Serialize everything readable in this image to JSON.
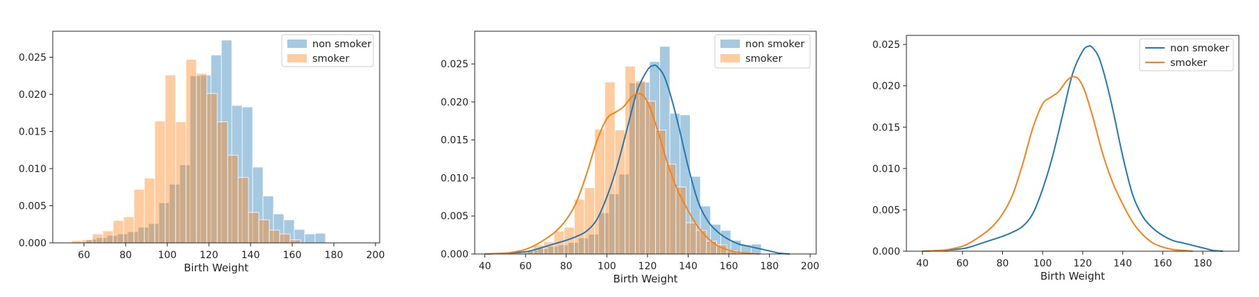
{
  "colors": {
    "non_smoker": "#1f77b4",
    "smoker": "#ff7f0e",
    "spine": "#222222",
    "legend_border": "#cccccc"
  },
  "chart_data": [
    {
      "type": "histogram",
      "title": "",
      "xlabel": "Birth Weight",
      "ylabel": "",
      "xlim": [
        45,
        202
      ],
      "ylim": [
        0,
        0.0285
      ],
      "xticks": [
        "60",
        "80",
        "100",
        "120",
        "140",
        "160",
        "180",
        "200"
      ],
      "xtick_values": [
        60,
        80,
        100,
        120,
        140,
        160,
        180,
        200
      ],
      "yticks": [
        "0.000",
        "0.005",
        "0.010",
        "0.015",
        "0.020",
        "0.025"
      ],
      "ytick_values": [
        0,
        0.005,
        0.01,
        0.015,
        0.02,
        0.025
      ],
      "grid": false,
      "legend": {
        "position": "top-right",
        "style": "patch",
        "entries": [
          "non smoker",
          "smoker"
        ]
      },
      "series": [
        {
          "name": "non smoker",
          "color": "#1f77b4",
          "alpha": 0.4,
          "bin_edges": [
            56,
            61,
            66,
            71,
            76,
            81,
            86,
            91,
            96,
            101,
            106,
            111,
            116,
            121,
            126,
            131,
            136,
            141,
            146,
            151,
            156,
            161,
            166,
            171,
            176
          ],
          "values": [
            0.0001,
            0.0005,
            0.0007,
            0.001,
            0.0012,
            0.0015,
            0.0021,
            0.0026,
            0.0054,
            0.0079,
            0.0105,
            0.0225,
            0.0226,
            0.0253,
            0.0273,
            0.0185,
            0.0183,
            0.0102,
            0.0063,
            0.0039,
            0.0031,
            0.0018,
            0.0012,
            0.0013
          ]
        },
        {
          "name": "smoker",
          "color": "#ff7f0e",
          "alpha": 0.4,
          "bin_edges": [
            54,
            59,
            64,
            69,
            74,
            79,
            84,
            89,
            94,
            99,
            104,
            109,
            114,
            119,
            124,
            129,
            134,
            139,
            144,
            149,
            154,
            159,
            164
          ],
          "values": [
            0.0003,
            0.0004,
            0.0012,
            0.0016,
            0.003,
            0.0035,
            0.0072,
            0.0087,
            0.0164,
            0.0226,
            0.0163,
            0.0247,
            0.0228,
            0.0201,
            0.0163,
            0.0118,
            0.0088,
            0.0041,
            0.0031,
            0.0017,
            0.0012,
            0.0004
          ]
        }
      ]
    },
    {
      "type": "histogram",
      "title": "",
      "xlabel": "Birth Weight",
      "ylabel": "",
      "xlim": [
        35,
        203
      ],
      "ylim": [
        0,
        0.0293
      ],
      "xticks": [
        "40",
        "60",
        "80",
        "100",
        "120",
        "140",
        "160",
        "180",
        "200"
      ],
      "xtick_values": [
        40,
        60,
        80,
        100,
        120,
        140,
        160,
        180,
        200
      ],
      "yticks": [
        "0.000",
        "0.005",
        "0.010",
        "0.015",
        "0.020",
        "0.025"
      ],
      "ytick_values": [
        0,
        0.005,
        0.01,
        0.015,
        0.02,
        0.025
      ],
      "grid": false,
      "legend": {
        "position": "top-right",
        "style": "patch",
        "entries": [
          "non smoker",
          "smoker"
        ]
      },
      "series": [
        {
          "name": "non smoker",
          "color": "#1f77b4",
          "alpha": 0.4,
          "bin_edges": [
            56,
            61,
            66,
            71,
            76,
            81,
            86,
            91,
            96,
            101,
            106,
            111,
            116,
            121,
            126,
            131,
            136,
            141,
            146,
            151,
            156,
            161,
            166,
            171,
            176
          ],
          "values": [
            0.0001,
            0.0005,
            0.0007,
            0.001,
            0.0012,
            0.0015,
            0.0021,
            0.0026,
            0.0054,
            0.0079,
            0.0105,
            0.0225,
            0.0226,
            0.0253,
            0.0273,
            0.0185,
            0.0183,
            0.0102,
            0.0063,
            0.0039,
            0.0031,
            0.0018,
            0.0012,
            0.0013
          ],
          "kde": {
            "x": [
              40,
              50,
              60,
              65,
              70,
              75,
              80,
              85,
              90,
              95,
              100,
              105,
              110,
              115,
              120,
              123,
              125,
              128,
              131,
              135,
              140,
              145,
              150,
              155,
              160,
              165,
              170,
              175,
              180,
              185,
              190
            ],
            "y": [
              0,
              0.0001,
              0.0003,
              0.0006,
              0.001,
              0.0014,
              0.0018,
              0.0023,
              0.003,
              0.0045,
              0.0075,
              0.0115,
              0.0165,
              0.0215,
              0.0242,
              0.0248,
              0.0246,
              0.0235,
              0.0212,
              0.0172,
              0.0115,
              0.0068,
              0.0042,
              0.0028,
              0.0019,
              0.0013,
              0.001,
              0.0007,
              0.0004,
              0.0001,
              0
            ]
          }
        },
        {
          "name": "smoker",
          "color": "#ff7f0e",
          "alpha": 0.4,
          "bin_edges": [
            54,
            59,
            64,
            69,
            74,
            79,
            84,
            89,
            94,
            99,
            104,
            109,
            114,
            119,
            124,
            129,
            134,
            139,
            144,
            149,
            154,
            159,
            164
          ],
          "values": [
            0.0003,
            0.0004,
            0.0012,
            0.0016,
            0.003,
            0.0035,
            0.0072,
            0.0087,
            0.0164,
            0.0226,
            0.0163,
            0.0247,
            0.0228,
            0.0201,
            0.0163,
            0.0118,
            0.0088,
            0.0041,
            0.0031,
            0.0017,
            0.0012,
            0.0004
          ],
          "kde": {
            "x": [
              40,
              50,
              55,
              60,
              65,
              70,
              75,
              80,
              85,
              90,
              95,
              100,
              104,
              108,
              112,
              115,
              118,
              121,
              125,
              130,
              135,
              140,
              145,
              150,
              155,
              160,
              165,
              170,
              175
            ],
            "y": [
              0,
              0.0001,
              0.0003,
              0.0006,
              0.0012,
              0.002,
              0.003,
              0.0045,
              0.0068,
              0.0105,
              0.0148,
              0.0178,
              0.0186,
              0.0193,
              0.0206,
              0.0211,
              0.0208,
              0.0194,
              0.0163,
              0.0118,
              0.0083,
              0.0057,
              0.0035,
              0.002,
              0.001,
              0.0005,
              0.0002,
              0.0001,
              0
            ]
          }
        }
      ]
    },
    {
      "type": "line",
      "title": "",
      "xlabel": "Birth Weight",
      "ylabel": "",
      "xlim": [
        32,
        198
      ],
      "ylim": [
        0,
        0.0261
      ],
      "xticks": [
        "40",
        "60",
        "80",
        "100",
        "120",
        "140",
        "160",
        "180"
      ],
      "xtick_values": [
        40,
        60,
        80,
        100,
        120,
        140,
        160,
        180
      ],
      "yticks": [
        "0.000",
        "0.005",
        "0.010",
        "0.015",
        "0.020",
        "0.025"
      ],
      "ytick_values": [
        0,
        0.005,
        0.01,
        0.015,
        0.02,
        0.025
      ],
      "grid": false,
      "legend": {
        "position": "top-right",
        "style": "line",
        "entries": [
          "non smoker",
          "smoker"
        ]
      },
      "series": [
        {
          "name": "non smoker",
          "color": "#1f77b4",
          "x": [
            40,
            50,
            60,
            65,
            70,
            75,
            80,
            85,
            90,
            95,
            100,
            105,
            110,
            115,
            120,
            123,
            125,
            128,
            131,
            135,
            140,
            145,
            150,
            155,
            160,
            165,
            170,
            175,
            180,
            185,
            190
          ],
          "y": [
            0,
            0.0001,
            0.0003,
            0.0006,
            0.001,
            0.0014,
            0.0018,
            0.0023,
            0.003,
            0.0045,
            0.0075,
            0.0115,
            0.0165,
            0.0215,
            0.0242,
            0.0248,
            0.0246,
            0.0235,
            0.0212,
            0.0172,
            0.0115,
            0.0068,
            0.0042,
            0.0028,
            0.0019,
            0.0013,
            0.001,
            0.0007,
            0.0004,
            0.0001,
            0
          ]
        },
        {
          "name": "smoker",
          "color": "#ff7f0e",
          "x": [
            40,
            50,
            55,
            60,
            65,
            70,
            75,
            80,
            85,
            90,
            95,
            100,
            104,
            108,
            112,
            115,
            118,
            121,
            125,
            130,
            135,
            140,
            145,
            150,
            155,
            160,
            165,
            170,
            175
          ],
          "y": [
            0,
            0.0001,
            0.0003,
            0.0006,
            0.0012,
            0.002,
            0.003,
            0.0045,
            0.0068,
            0.0105,
            0.0148,
            0.0178,
            0.0186,
            0.0193,
            0.0206,
            0.0211,
            0.0208,
            0.0194,
            0.0163,
            0.0118,
            0.0083,
            0.0057,
            0.0035,
            0.002,
            0.001,
            0.0005,
            0.0002,
            0.0001,
            0
          ]
        }
      ]
    }
  ]
}
